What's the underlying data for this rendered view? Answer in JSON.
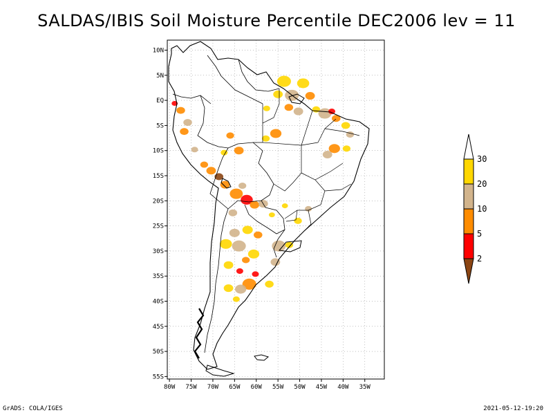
{
  "title": "SALDAS/IBIS Soil Moisture Percentile DEC2006 lev = 11",
  "footer": {
    "left": "GrADS: COLA/IGES",
    "right": "2021-05-12-19:20"
  },
  "map": {
    "lon_range": [
      -80.5,
      -30.5
    ],
    "lat_range": [
      -55.5,
      12
    ],
    "lon_ticks": [
      {
        "v": -80,
        "t": "80W"
      },
      {
        "v": -75,
        "t": "75W"
      },
      {
        "v": -70,
        "t": "70W"
      },
      {
        "v": -65,
        "t": "65W"
      },
      {
        "v": -60,
        "t": "60W"
      },
      {
        "v": -55,
        "t": "55W"
      },
      {
        "v": -50,
        "t": "50W"
      },
      {
        "v": -45,
        "t": "45W"
      },
      {
        "v": -40,
        "t": "40W"
      },
      {
        "v": -35,
        "t": "35W"
      }
    ],
    "lat_ticks": [
      {
        "v": 10,
        "t": "10N"
      },
      {
        "v": 5,
        "t": "5N"
      },
      {
        "v": 0,
        "t": "EQ"
      },
      {
        "v": -5,
        "t": "5S"
      },
      {
        "v": -10,
        "t": "10S"
      },
      {
        "v": -15,
        "t": "15S"
      },
      {
        "v": -20,
        "t": "20S"
      },
      {
        "v": -25,
        "t": "25S"
      },
      {
        "v": -30,
        "t": "30S"
      },
      {
        "v": -35,
        "t": "35S"
      },
      {
        "v": -40,
        "t": "40S"
      },
      {
        "v": -45,
        "t": "45S"
      },
      {
        "v": -50,
        "t": "50S"
      },
      {
        "v": -55,
        "t": "55S"
      }
    ],
    "grid": "dotted",
    "colors": {
      "brown": "#8b4513",
      "red": "#ff0000",
      "orange": "#ff8c00",
      "tan": "#d2b48c",
      "gold": "#ffd700"
    },
    "patches": [
      {
        "lon": -53.6,
        "lat": 3.8,
        "r": 1.6,
        "c": "gold"
      },
      {
        "lon": -51.8,
        "lat": 1.0,
        "r": 1.6,
        "c": "tan"
      },
      {
        "lon": -49.2,
        "lat": 3.4,
        "r": 1.4,
        "c": "gold"
      },
      {
        "lon": -47.6,
        "lat": 0.9,
        "r": 1.1,
        "c": "orange"
      },
      {
        "lon": -52.5,
        "lat": -1.4,
        "r": 1.0,
        "c": "orange"
      },
      {
        "lon": -55.0,
        "lat": 1.2,
        "r": 1.1,
        "c": "gold"
      },
      {
        "lon": -57.6,
        "lat": -1.6,
        "r": 0.8,
        "c": "gold"
      },
      {
        "lon": -50.3,
        "lat": -2.2,
        "r": 1.1,
        "c": "tan"
      },
      {
        "lon": -46.2,
        "lat": -1.8,
        "r": 0.9,
        "c": "gold"
      },
      {
        "lon": -44.2,
        "lat": -2.6,
        "r": 1.5,
        "c": "tan"
      },
      {
        "lon": -42.6,
        "lat": -2.2,
        "r": 0.8,
        "c": "red"
      },
      {
        "lon": -41.6,
        "lat": -3.6,
        "r": 1.0,
        "c": "orange"
      },
      {
        "lon": -39.4,
        "lat": -5.0,
        "r": 1.0,
        "c": "gold"
      },
      {
        "lon": -38.4,
        "lat": -6.8,
        "r": 0.9,
        "c": "tan"
      },
      {
        "lon": -42.0,
        "lat": -9.6,
        "r": 1.3,
        "c": "orange"
      },
      {
        "lon": -43.6,
        "lat": -10.8,
        "r": 1.1,
        "c": "tan"
      },
      {
        "lon": -39.2,
        "lat": -9.6,
        "r": 0.9,
        "c": "gold"
      },
      {
        "lon": -55.5,
        "lat": -6.6,
        "r": 1.3,
        "c": "orange"
      },
      {
        "lon": -57.8,
        "lat": -7.6,
        "r": 0.9,
        "c": "gold"
      },
      {
        "lon": -66.0,
        "lat": -7.0,
        "r": 0.9,
        "c": "orange"
      },
      {
        "lon": -64.0,
        "lat": -10.0,
        "r": 1.1,
        "c": "orange"
      },
      {
        "lon": -67.4,
        "lat": -10.4,
        "r": 0.8,
        "c": "gold"
      },
      {
        "lon": -77.4,
        "lat": -2.0,
        "r": 1.0,
        "c": "orange"
      },
      {
        "lon": -78.8,
        "lat": -0.6,
        "r": 0.7,
        "c": "red"
      },
      {
        "lon": -75.8,
        "lat": -4.4,
        "r": 1.0,
        "c": "tan"
      },
      {
        "lon": -76.6,
        "lat": -6.2,
        "r": 1.0,
        "c": "orange"
      },
      {
        "lon": -74.2,
        "lat": -9.8,
        "r": 0.8,
        "c": "tan"
      },
      {
        "lon": -72.0,
        "lat": -12.8,
        "r": 0.9,
        "c": "orange"
      },
      {
        "lon": -70.4,
        "lat": -14.0,
        "r": 1.1,
        "c": "orange"
      },
      {
        "lon": -68.6,
        "lat": -15.2,
        "r": 1.0,
        "c": "brown"
      },
      {
        "lon": -67.2,
        "lat": -16.8,
        "r": 1.1,
        "c": "orange"
      },
      {
        "lon": -64.6,
        "lat": -18.6,
        "r": 1.5,
        "c": "orange"
      },
      {
        "lon": -62.2,
        "lat": -19.8,
        "r": 1.4,
        "c": "red"
      },
      {
        "lon": -60.4,
        "lat": -20.8,
        "r": 1.1,
        "c": "orange"
      },
      {
        "lon": -58.4,
        "lat": -20.6,
        "r": 1.1,
        "c": "tan"
      },
      {
        "lon": -63.2,
        "lat": -17.0,
        "r": 0.9,
        "c": "tan"
      },
      {
        "lon": -65.4,
        "lat": -22.4,
        "r": 1.0,
        "c": "tan"
      },
      {
        "lon": -62.0,
        "lat": -25.8,
        "r": 1.2,
        "c": "gold"
      },
      {
        "lon": -59.6,
        "lat": -26.8,
        "r": 1.0,
        "c": "orange"
      },
      {
        "lon": -65.0,
        "lat": -26.4,
        "r": 1.2,
        "c": "tan"
      },
      {
        "lon": -67.0,
        "lat": -28.6,
        "r": 1.4,
        "c": "gold"
      },
      {
        "lon": -64.0,
        "lat": -29.0,
        "r": 1.6,
        "c": "tan"
      },
      {
        "lon": -60.6,
        "lat": -30.6,
        "r": 1.3,
        "c": "gold"
      },
      {
        "lon": -62.4,
        "lat": -31.8,
        "r": 0.9,
        "c": "orange"
      },
      {
        "lon": -66.4,
        "lat": -32.8,
        "r": 1.1,
        "c": "gold"
      },
      {
        "lon": -63.8,
        "lat": -34.0,
        "r": 0.8,
        "c": "red"
      },
      {
        "lon": -61.6,
        "lat": -36.6,
        "r": 1.6,
        "c": "orange"
      },
      {
        "lon": -63.6,
        "lat": -37.6,
        "r": 1.3,
        "c": "tan"
      },
      {
        "lon": -66.4,
        "lat": -37.4,
        "r": 1.1,
        "c": "gold"
      },
      {
        "lon": -60.2,
        "lat": -34.6,
        "r": 0.8,
        "c": "red"
      },
      {
        "lon": -57.0,
        "lat": -36.6,
        "r": 1.0,
        "c": "gold"
      },
      {
        "lon": -64.6,
        "lat": -39.6,
        "r": 0.8,
        "c": "gold"
      },
      {
        "lon": -54.8,
        "lat": -29.0,
        "r": 1.6,
        "c": "tan"
      },
      {
        "lon": -52.4,
        "lat": -28.8,
        "r": 0.9,
        "c": "gold"
      },
      {
        "lon": -55.6,
        "lat": -32.2,
        "r": 1.1,
        "c": "tan"
      },
      {
        "lon": -50.4,
        "lat": -24.0,
        "r": 0.9,
        "c": "gold"
      },
      {
        "lon": -48.0,
        "lat": -21.6,
        "r": 0.8,
        "c": "tan"
      },
      {
        "lon": -56.4,
        "lat": -22.8,
        "r": 0.7,
        "c": "gold"
      },
      {
        "lon": -53.4,
        "lat": -21.0,
        "r": 0.7,
        "c": "gold"
      }
    ]
  },
  "legend": {
    "labels": [
      "30",
      "20",
      "10",
      "5",
      "2"
    ],
    "colors": [
      "#ffffff",
      "#ffd700",
      "#d2b48c",
      "#ff8c00",
      "#ff0000",
      "#8b4513"
    ]
  }
}
